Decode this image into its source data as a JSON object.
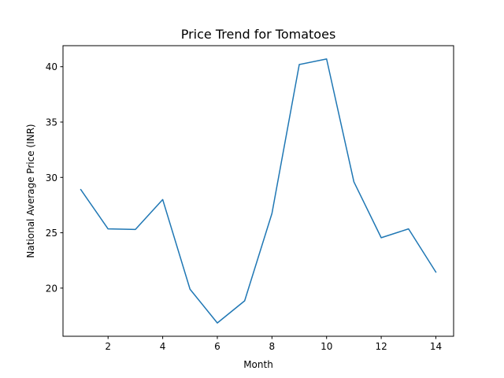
{
  "chart_data": {
    "type": "line",
    "title": "Price Trend for Tomatoes",
    "xlabel": "Month",
    "ylabel": "National Average Price (INR)",
    "xlim": [
      0.35,
      14.65
    ],
    "ylim": [
      15.65,
      41.9
    ],
    "xticks": [
      2,
      4,
      6,
      8,
      10,
      12,
      14
    ],
    "yticks": [
      20,
      25,
      30,
      35,
      40
    ],
    "grid": false,
    "series": [
      {
        "color": "#1f77b4",
        "x": [
          1,
          2,
          3,
          4,
          5,
          6,
          7,
          8,
          9,
          10,
          11,
          12,
          13,
          14
        ],
        "y": [
          28.9,
          25.35,
          25.3,
          28.0,
          19.9,
          16.85,
          18.85,
          26.75,
          40.2,
          40.7,
          29.6,
          24.55,
          25.35,
          21.45
        ]
      }
    ]
  }
}
